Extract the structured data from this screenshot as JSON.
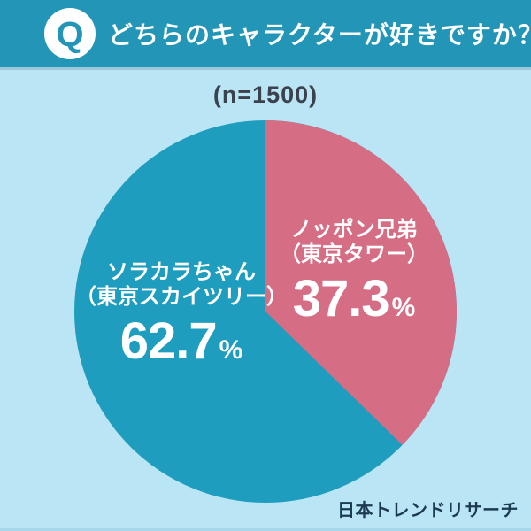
{
  "page": {
    "background": "#b9e5f4",
    "bottom_edge_color": "#a7d7ea"
  },
  "header": {
    "background": "#2396b8",
    "text_color": "#ffffff",
    "q_badge": {
      "letter": "Q",
      "background": "#ffffff",
      "color": "#2396b8"
    },
    "title": "どちらのキャラクターが好きですか？"
  },
  "survey": {
    "sample_size_label": "(n=1500)",
    "text_color": "#3b414d"
  },
  "chart_data": {
    "type": "pie",
    "title": "どちらのキャラクターが好きですか？",
    "sample_size": 1500,
    "start_angle_deg": 0,
    "direction": "clockwise",
    "label_text_color": "#ffffff",
    "legend_position": "none",
    "slices": [
      {
        "label": "ソラカラちゃん（東京スカイツリー）",
        "name_line1": "ソラカラちゃん",
        "name_line2": "（東京スカイツリー）",
        "value": 62.7,
        "unit": "%",
        "color": "#1f9dbf"
      },
      {
        "label": "ノッポン兄弟（東京タワー）",
        "name_line1": "ノッポン兄弟",
        "name_line2": "（東京タワー）",
        "value": 37.3,
        "unit": "%",
        "color": "#d56e85"
      }
    ]
  },
  "footer": {
    "attribution": "日本トレンドリサーチ",
    "color": "#1c3a52"
  }
}
